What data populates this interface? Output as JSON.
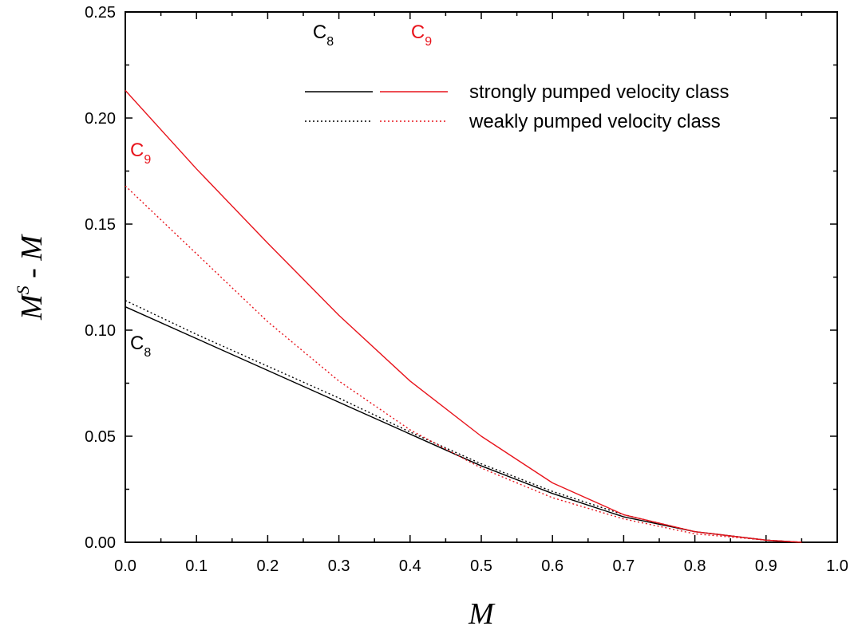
{
  "chart_data": {
    "type": "line",
    "xlabel": "M",
    "ylabel_main": "M",
    "ylabel_sup": "S",
    "ylabel_rest": " - M",
    "xlim": [
      0.0,
      1.0
    ],
    "ylim": [
      0.0,
      0.25
    ],
    "x_ticks": [
      "0.0",
      "0.1",
      "0.2",
      "0.3",
      "0.4",
      "0.5",
      "0.6",
      "0.7",
      "0.8",
      "0.9",
      "1.0"
    ],
    "y_ticks": [
      "0.00",
      "0.05",
      "0.10",
      "0.15",
      "0.20",
      "0.25"
    ],
    "grid": false,
    "legend": {
      "placement": "top-right",
      "column_headers": [
        {
          "main": "C",
          "sub": "8",
          "color": "#000000"
        },
        {
          "main": "C",
          "sub": "9",
          "color": "#e8141c"
        }
      ],
      "rows": [
        "strongly pumped velocity class",
        "weakly pumped velocity class"
      ]
    },
    "annotations": [
      {
        "main": "C",
        "sub": "9",
        "color": "#e8141c",
        "x": 0.0,
        "y": 0.185
      },
      {
        "main": "C",
        "sub": "8",
        "color": "#000000",
        "x": 0.0,
        "y": 0.094
      }
    ],
    "series": [
      {
        "group": "C8",
        "pumping": "strong",
        "style": "solid",
        "color": "#000000",
        "x": [
          0.0,
          0.1,
          0.2,
          0.3,
          0.4,
          0.5,
          0.6,
          0.7,
          0.8,
          0.9,
          0.95
        ],
        "y": [
          0.111,
          0.096,
          0.081,
          0.066,
          0.051,
          0.036,
          0.023,
          0.012,
          0.005,
          0.001,
          0.0
        ]
      },
      {
        "group": "C8",
        "pumping": "weak",
        "style": "dotted",
        "color": "#000000",
        "x": [
          0.0,
          0.1,
          0.2,
          0.3,
          0.4,
          0.5,
          0.6,
          0.7,
          0.8,
          0.9,
          0.95
        ],
        "y": [
          0.114,
          0.098,
          0.083,
          0.068,
          0.052,
          0.037,
          0.024,
          0.013,
          0.005,
          0.001,
          0.0
        ]
      },
      {
        "group": "C9",
        "pumping": "strong",
        "style": "solid",
        "color": "#e8141c",
        "x": [
          0.0,
          0.1,
          0.2,
          0.3,
          0.4,
          0.5,
          0.6,
          0.7,
          0.8,
          0.9,
          0.95
        ],
        "y": [
          0.213,
          0.176,
          0.141,
          0.107,
          0.076,
          0.05,
          0.028,
          0.013,
          0.005,
          0.001,
          0.0
        ]
      },
      {
        "group": "C9",
        "pumping": "weak",
        "style": "dotted",
        "color": "#e8141c",
        "x": [
          0.0,
          0.1,
          0.2,
          0.3,
          0.4,
          0.5,
          0.6,
          0.7,
          0.8,
          0.9,
          0.95
        ],
        "y": [
          0.168,
          0.136,
          0.104,
          0.076,
          0.053,
          0.035,
          0.021,
          0.011,
          0.004,
          0.001,
          0.0
        ]
      }
    ]
  }
}
